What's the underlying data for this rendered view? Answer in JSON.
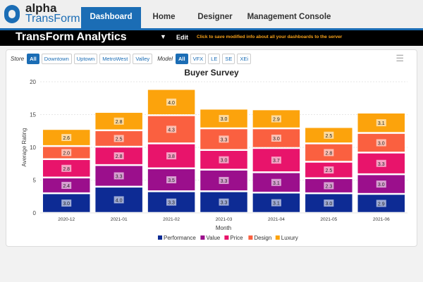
{
  "header": {
    "logo_top": "alpha",
    "logo_bottom": "TransForm",
    "tabs": [
      "Dashboard",
      "Home",
      "Designer",
      "Management Console"
    ],
    "active_tab": "Dashboard"
  },
  "toolbar": {
    "title": "TransForm Analytics",
    "dropdown_icon": "caret-down-icon",
    "edit": "Edit",
    "save_hint": "Click to save modified info about all your dashboards to the server"
  },
  "filters": {
    "store_label": "Store",
    "stores": [
      "All",
      "Downtown",
      "Uptown",
      "MetroWest",
      "Valley"
    ],
    "model_label": "Model",
    "models": [
      "All",
      "VFX",
      "LE",
      "SE",
      "XEi"
    ],
    "menu_icon": "hamburger-icon"
  },
  "chart_data": {
    "type": "bar",
    "stacked": true,
    "title": "Buyer Survey",
    "xlabel": "Month",
    "ylabel": "Average Rating",
    "ylim": [
      0,
      20
    ],
    "yticks": [
      0,
      5,
      10,
      15,
      20
    ],
    "grid": true,
    "legend": "bottom",
    "categories": [
      "2020-12",
      "2021-01",
      "2021-02",
      "2021-03",
      "2021-04",
      "2021-05",
      "2021-06"
    ],
    "series": [
      {
        "name": "Performance",
        "color": "#0d2b94",
        "values": [
          3.0,
          4.0,
          3.3,
          3.3,
          3.1,
          3.0,
          2.9
        ]
      },
      {
        "name": "Value",
        "color": "#9b0f8c",
        "values": [
          2.4,
          3.3,
          3.5,
          3.3,
          3.1,
          2.3,
          3.0
        ]
      },
      {
        "name": "Price",
        "color": "#e8146b",
        "values": [
          2.8,
          2.8,
          3.8,
          3.0,
          3.7,
          2.5,
          3.3
        ]
      },
      {
        "name": "Design",
        "color": "#fa6040",
        "values": [
          2.0,
          2.5,
          4.3,
          3.3,
          3.0,
          2.8,
          3.0
        ]
      },
      {
        "name": "Luxury",
        "color": "#fca30c",
        "values": [
          2.6,
          2.8,
          4.0,
          3.0,
          2.9,
          2.5,
          3.1
        ]
      }
    ]
  }
}
